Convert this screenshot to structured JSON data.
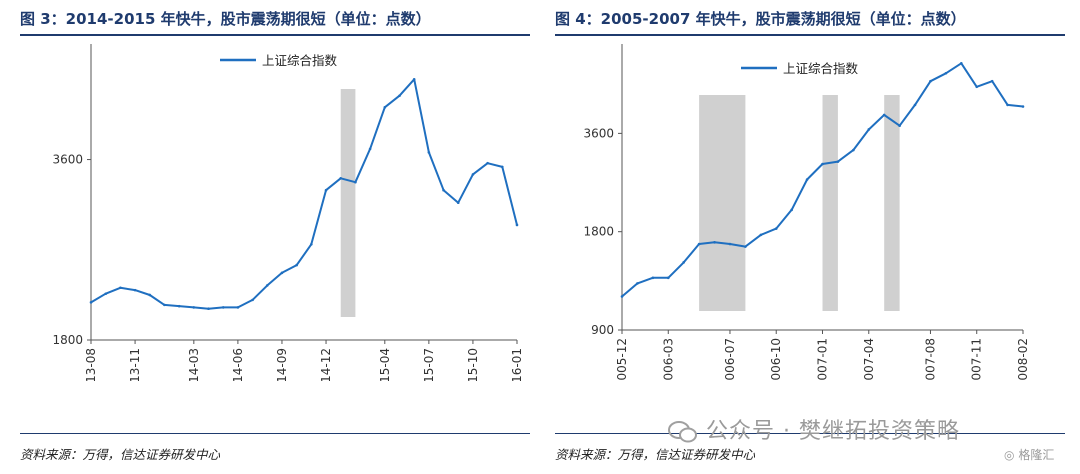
{
  "figures": [
    {
      "title": "图 3：2014-2015 年快牛，股市震荡期很短（单位：点数）",
      "source": "资料来源：万得，信达证券研发中心"
    },
    {
      "title": "图 4：2005-2007 年快牛，股市震荡期很短（单位：点数）",
      "source": "资料来源：万得，信达证券研发中心"
    }
  ],
  "watermark": {
    "text": "公众号 · 樊继拓投资策略",
    "logo_text": "格隆汇"
  },
  "chart_data": [
    {
      "type": "line",
      "title": "图 3：2014-2015 年快牛，股市震荡期很短（单位：点数）",
      "xlabel": "",
      "ylabel": "",
      "yscale": "log",
      "ylim": [
        1800,
        5400
      ],
      "yticks": [
        1800,
        3600
      ],
      "xlim": [
        "2013-08",
        "2016-01"
      ],
      "xticks": [
        "2013-08",
        "2013-11",
        "2014-03",
        "2014-06",
        "2014-09",
        "2014-12",
        "2015-04",
        "2015-07",
        "2015-10",
        "2016-01"
      ],
      "grid": false,
      "legend": "top-left",
      "series": [
        {
          "name": "上证综合指数",
          "color": "#1f6fc0",
          "points": [
            [
              "2013-08",
              2080
            ],
            [
              "2013-09",
              2150
            ],
            [
              "2013-10",
              2200
            ],
            [
              "2013-11",
              2180
            ],
            [
              "2013-12",
              2140
            ],
            [
              "2014-01",
              2060
            ],
            [
              "2014-02",
              2050
            ],
            [
              "2014-03",
              2040
            ],
            [
              "2014-04",
              2030
            ],
            [
              "2014-05",
              2040
            ],
            [
              "2014-06",
              2040
            ],
            [
              "2014-07",
              2100
            ],
            [
              "2014-08",
              2220
            ],
            [
              "2014-09",
              2330
            ],
            [
              "2014-10",
              2400
            ],
            [
              "2014-11",
              2600
            ],
            [
              "2014-12",
              3200
            ],
            [
              "2015-01",
              3350
            ],
            [
              "2015-02",
              3300
            ],
            [
              "2015-03",
              3750
            ],
            [
              "2015-04",
              4400
            ],
            [
              "2015-05",
              4600
            ],
            [
              "2015-06",
              4900
            ],
            [
              "2015-07",
              3700
            ],
            [
              "2015-08",
              3200
            ],
            [
              "2015-09",
              3050
            ],
            [
              "2015-10",
              3400
            ],
            [
              "2015-11",
              3550
            ],
            [
              "2015-12",
              3500
            ],
            [
              "2016-01",
              2800
            ]
          ]
        }
      ],
      "shaded_periods": [
        [
          "2015-01",
          "2015-02"
        ]
      ]
    },
    {
      "type": "line",
      "title": "图 4：2005-2007 年快牛，股市震荡期很短（单位：点数）",
      "xlabel": "",
      "ylabel": "",
      "yscale": "log",
      "ylim": [
        900,
        6300
      ],
      "yticks": [
        900,
        1800,
        3600
      ],
      "xlim": [
        "2005-12",
        "2008-02"
      ],
      "xticks": [
        "2005-12",
        "2006-03",
        "2006-07",
        "2006-10",
        "2007-01",
        "2007-04",
        "2007-08",
        "2007-11",
        "2008-02"
      ],
      "grid": false,
      "legend": "top-left",
      "series": [
        {
          "name": "上证综合指数",
          "color": "#1f6fc0",
          "points": [
            [
              "2005-12",
              1140
            ],
            [
              "2006-01",
              1250
            ],
            [
              "2006-02",
              1300
            ],
            [
              "2006-03",
              1300
            ],
            [
              "2006-04",
              1450
            ],
            [
              "2006-05",
              1650
            ],
            [
              "2006-06",
              1670
            ],
            [
              "2006-07",
              1650
            ],
            [
              "2006-08",
              1620
            ],
            [
              "2006-09",
              1760
            ],
            [
              "2006-10",
              1840
            ],
            [
              "2006-11",
              2100
            ],
            [
              "2006-12",
              2600
            ],
            [
              "2007-01",
              2900
            ],
            [
              "2007-02",
              2950
            ],
            [
              "2007-03",
              3200
            ],
            [
              "2007-04",
              3700
            ],
            [
              "2007-05",
              4100
            ],
            [
              "2007-06",
              3800
            ],
            [
              "2007-07",
              4400
            ],
            [
              "2007-08",
              5200
            ],
            [
              "2007-09",
              5500
            ],
            [
              "2007-10",
              5900
            ],
            [
              "2007-11",
              5000
            ],
            [
              "2007-12",
              5200
            ],
            [
              "2008-01",
              4400
            ],
            [
              "2008-02",
              4350
            ]
          ]
        }
      ],
      "shaded_periods": [
        [
          "2006-05",
          "2006-08"
        ],
        [
          "2007-01",
          "2007-02"
        ],
        [
          "2007-05",
          "2007-06"
        ]
      ]
    }
  ]
}
